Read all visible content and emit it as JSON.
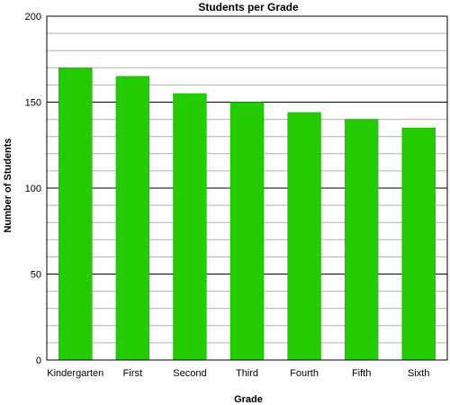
{
  "chart_data": {
    "type": "bar",
    "title": "Students per Grade",
    "xlabel": "Grade",
    "ylabel": "Number of Students",
    "categories": [
      "Kindergarten",
      "First",
      "Second",
      "Third",
      "Fourth",
      "Fifth",
      "Sixth"
    ],
    "values": [
      170,
      165,
      155,
      150,
      144,
      140,
      135
    ],
    "ylim": [
      0,
      200
    ],
    "yticks": [
      0,
      50,
      100,
      150,
      200
    ],
    "minor_grid_step": 10,
    "grid": true,
    "legend": "none",
    "colors": {
      "bar": "#22cc00",
      "bar_edge": "#1aa800",
      "major_grid": "#000000",
      "minor_grid": "#b0b0b0",
      "axis": "#000000"
    }
  }
}
